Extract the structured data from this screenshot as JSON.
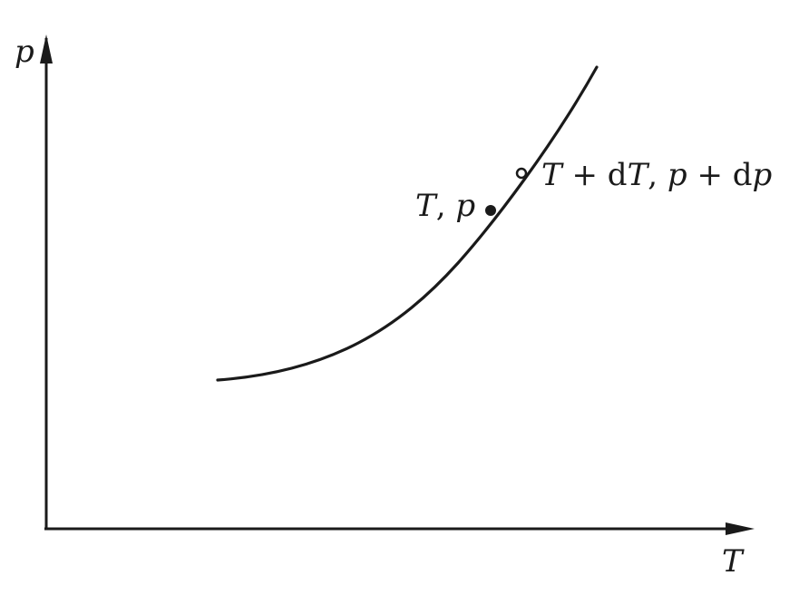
{
  "diagram": {
    "axes": {
      "x_label": "T",
      "y_label": "p"
    },
    "points": [
      {
        "label_parts": [
          "T",
          ", ",
          "p"
        ],
        "label_italic": [
          true,
          false,
          true
        ]
      },
      {
        "label_parts": [
          "T",
          " + ",
          "d",
          "T",
          ", ",
          "p",
          " + ",
          "d",
          "p"
        ],
        "label_italic": [
          true,
          false,
          false,
          true,
          false,
          true,
          false,
          false,
          true
        ]
      }
    ],
    "colors": {
      "ink": "#1a1a1a",
      "background": "#ffffff"
    }
  }
}
